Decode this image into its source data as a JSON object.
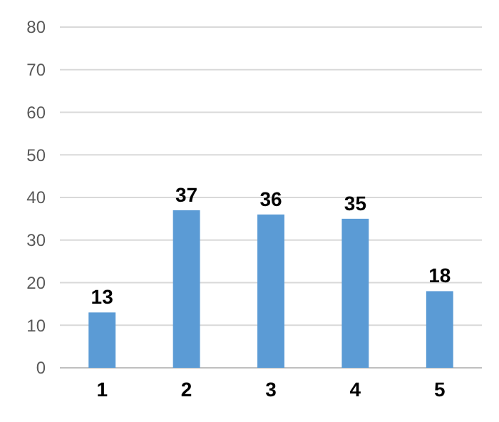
{
  "chart_data": {
    "type": "bar",
    "categories": [
      "1",
      "2",
      "3",
      "4",
      "5"
    ],
    "values": [
      13,
      37,
      36,
      35,
      18
    ],
    "color": "#5b9bd5",
    "ylim": [
      0,
      80
    ],
    "yticks": [
      0,
      10,
      20,
      30,
      40,
      50,
      60,
      70,
      80
    ],
    "grid": "y",
    "data_labels": true
  }
}
